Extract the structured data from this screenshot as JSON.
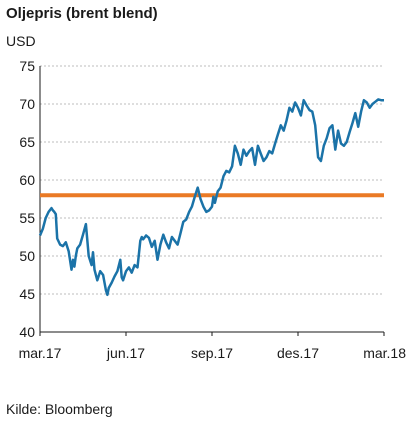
{
  "chart_data": {
    "type": "line",
    "title": "Oljepris (brent blend)",
    "ylabel": "USD",
    "source": "Kilde: Bloomberg",
    "ylim": [
      40,
      75
    ],
    "yticks": [
      40,
      45,
      50,
      55,
      60,
      65,
      70,
      75
    ],
    "xlim": [
      0,
      12
    ],
    "xticks": [
      {
        "x": 0,
        "label": "mar.17"
      },
      {
        "x": 3,
        "label": "jun.17"
      },
      {
        "x": 6,
        "label": "sep.17"
      },
      {
        "x": 9,
        "label": "des.17"
      },
      {
        "x": 12,
        "label": "mar.18"
      }
    ],
    "grid": "horizontal dashed",
    "colors": {
      "series": "#1b73a8",
      "reference": "#ea7a25",
      "grid": "#bdbdbd"
    },
    "reference_line": {
      "y": 58
    },
    "series": [
      {
        "x": [
          0.0,
          0.1,
          0.2,
          0.3,
          0.4,
          0.45,
          0.5,
          0.55,
          0.6,
          0.7,
          0.8,
          0.9,
          1.0,
          1.1,
          1.15,
          1.2,
          1.25,
          1.3,
          1.4,
          1.5,
          1.6,
          1.7,
          1.8,
          1.85,
          1.9,
          2.0,
          2.1,
          2.2,
          2.3,
          2.35,
          2.4,
          2.5,
          2.6,
          2.7,
          2.8,
          2.85,
          2.9,
          3.0,
          3.1,
          3.2,
          3.3,
          3.4,
          3.5,
          3.55,
          3.6,
          3.7,
          3.8,
          3.9,
          4.0,
          4.1,
          4.2,
          4.3,
          4.4,
          4.5,
          4.6,
          4.7,
          4.8,
          4.9,
          5.0,
          5.1,
          5.2,
          5.3,
          5.4,
          5.5,
          5.6,
          5.7,
          5.8,
          5.9,
          6.0,
          6.05,
          6.1,
          6.2,
          6.3,
          6.4,
          6.5,
          6.6,
          6.7,
          6.8,
          6.9,
          7.0,
          7.1,
          7.2,
          7.3,
          7.4,
          7.5,
          7.6,
          7.7,
          7.8,
          7.9,
          8.0,
          8.1,
          8.2,
          8.3,
          8.4,
          8.5,
          8.6,
          8.7,
          8.8,
          8.9,
          9.0,
          9.1,
          9.2,
          9.3,
          9.4,
          9.5,
          9.6,
          9.7,
          9.8,
          9.9,
          10.0,
          10.1,
          10.2,
          10.3,
          10.4,
          10.5,
          10.6,
          10.7,
          10.8,
          10.9,
          11.0,
          11.1,
          11.2,
          11.3,
          11.4,
          11.5,
          11.6,
          11.7,
          11.8,
          11.9,
          12.0
        ],
        "y": [
          52.7,
          53.6,
          55.0,
          55.8,
          56.3,
          56.0,
          55.8,
          55.5,
          52.3,
          51.5,
          51.3,
          51.8,
          50.6,
          48.2,
          49.5,
          48.6,
          50.0,
          51.0,
          51.5,
          52.8,
          54.2,
          50.0,
          48.8,
          50.5,
          48.2,
          46.8,
          48.0,
          47.5,
          45.5,
          44.9,
          45.8,
          46.5,
          47.3,
          48.0,
          49.5,
          47.2,
          46.8,
          48.0,
          48.5,
          47.8,
          48.8,
          48.5,
          52.0,
          52.5,
          52.2,
          52.7,
          52.4,
          51.2,
          52.0,
          49.5,
          51.5,
          52.8,
          51.8,
          51.0,
          52.5,
          52.0,
          51.5,
          53.0,
          54.5,
          54.8,
          55.8,
          56.5,
          57.8,
          59.0,
          57.5,
          56.5,
          55.8,
          56.0,
          56.5,
          57.8,
          57.0,
          58.5,
          59.0,
          60.5,
          61.2,
          61.0,
          61.8,
          64.5,
          63.5,
          62.0,
          64.0,
          63.2,
          63.8,
          64.2,
          62.0,
          64.5,
          63.5,
          62.5,
          63.0,
          63.8,
          63.5,
          64.8,
          66.0,
          67.2,
          66.5,
          67.8,
          69.5,
          69.0,
          70.2,
          69.5,
          68.5,
          70.5,
          69.8,
          69.2,
          69.0,
          67.2,
          63.0,
          62.5,
          64.5,
          65.5,
          66.8,
          67.2,
          64.0,
          66.5,
          64.8,
          64.5,
          65.0,
          66.3,
          67.5,
          68.8,
          67.0,
          69.0,
          70.5,
          70.2,
          69.5,
          70.0,
          70.3,
          70.6,
          70.5,
          70.5
        ]
      }
    ]
  }
}
